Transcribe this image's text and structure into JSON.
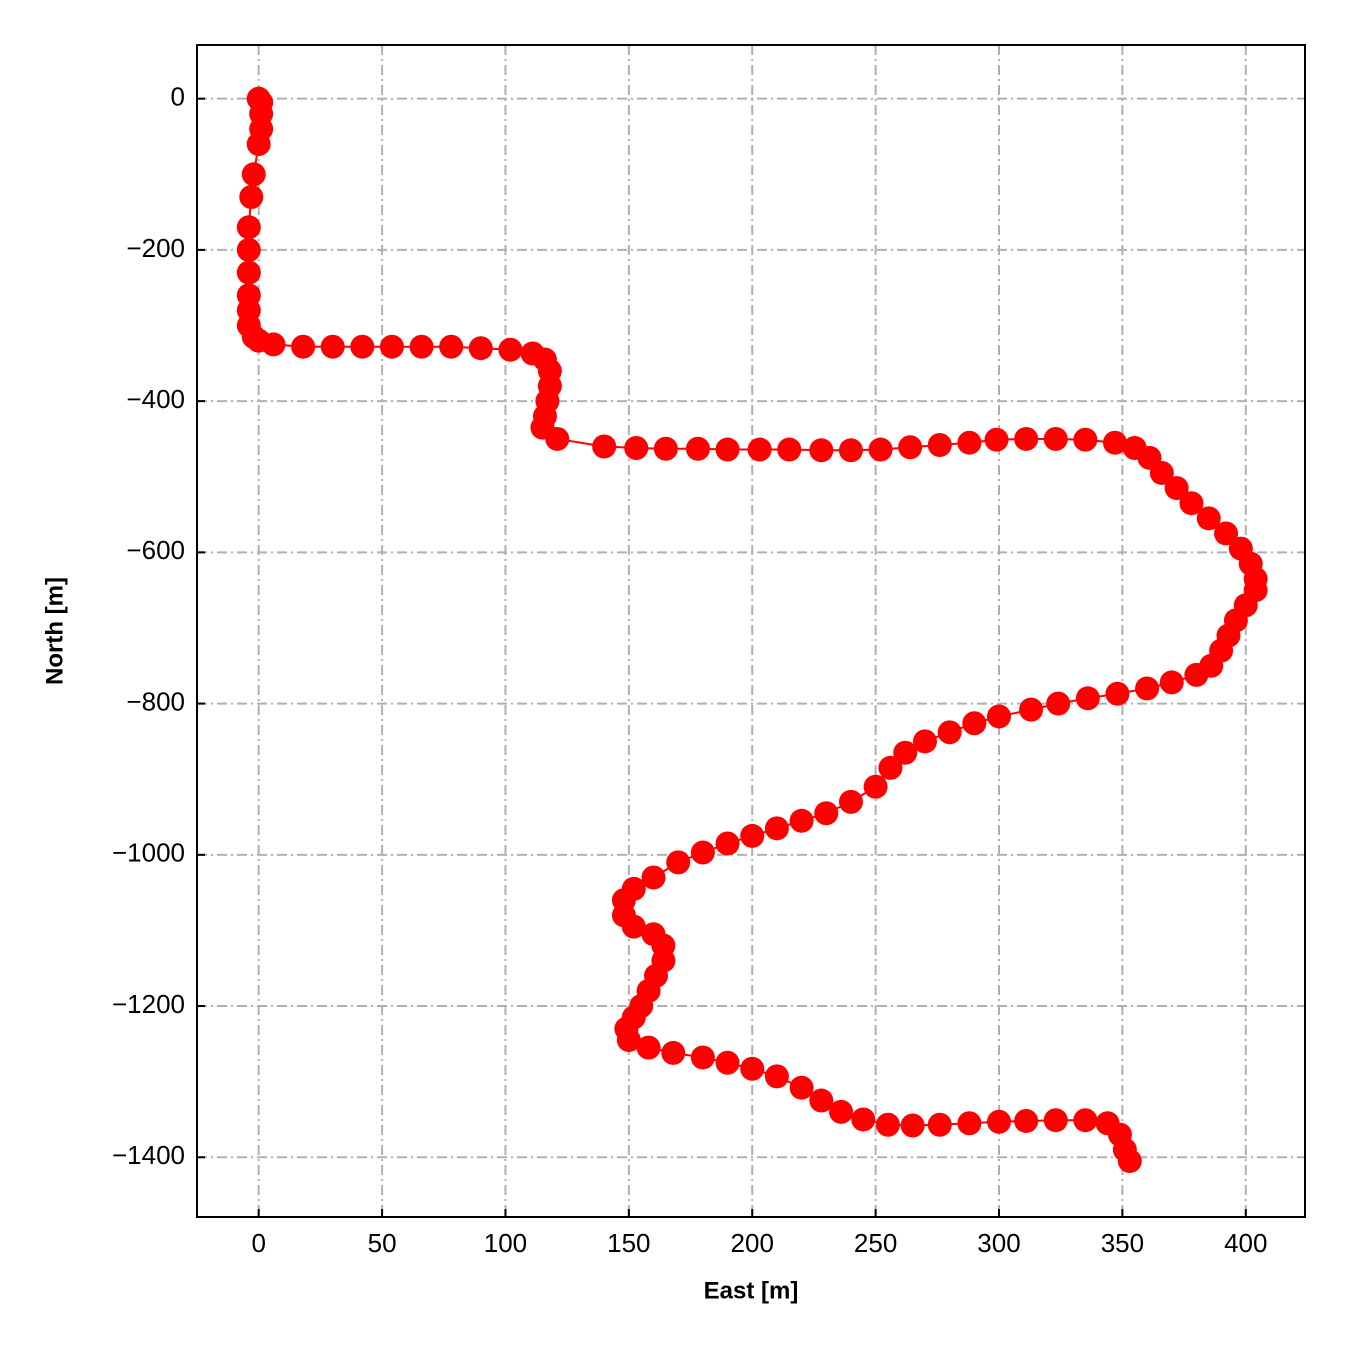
{
  "chart_data": {
    "type": "line",
    "xlabel": "East [m]",
    "ylabel": "North [m]",
    "color": "#ff0000",
    "grid": true,
    "markers": true,
    "xlim": [
      -25,
      424
    ],
    "ylim": [
      -1479,
      71
    ],
    "xticks": [
      0,
      50,
      100,
      150,
      200,
      250,
      300,
      350,
      400
    ],
    "yticks": [
      {
        "value": 0,
        "label": "0"
      },
      {
        "value": -200,
        "label": "−200"
      },
      {
        "value": -400,
        "label": "−400"
      },
      {
        "value": -600,
        "label": "−600"
      },
      {
        "value": -800,
        "label": "−800"
      },
      {
        "value": -1000,
        "label": "−1000"
      },
      {
        "value": -1200,
        "label": "−1200"
      },
      {
        "value": -1400,
        "label": "−1400"
      }
    ],
    "x": [
      0,
      1,
      1,
      1,
      0,
      -2,
      -3,
      -4,
      -4,
      -4,
      -4,
      -4,
      -4,
      -2,
      0,
      6,
      18,
      30,
      42,
      54,
      66,
      78,
      90,
      102,
      111,
      116,
      118,
      118,
      117,
      116,
      115,
      121,
      140,
      153,
      165,
      178,
      190,
      203,
      215,
      228,
      240,
      252,
      264,
      276,
      288,
      299,
      311,
      323,
      335,
      347,
      355,
      361,
      366,
      372,
      378,
      385,
      392,
      398,
      402,
      404,
      404,
      400,
      396,
      393,
      390,
      386,
      380,
      370,
      360,
      348,
      336,
      324,
      313,
      300,
      290,
      280,
      270,
      262,
      256,
      250,
      240,
      230,
      220,
      210,
      200,
      190,
      180,
      170,
      160,
      152,
      148,
      148,
      152,
      160,
      164,
      164,
      161,
      158,
      155,
      152,
      149,
      150,
      158,
      168,
      180,
      190,
      200,
      210,
      220,
      228,
      236,
      245,
      255,
      265,
      276,
      288,
      300,
      311,
      323,
      335,
      344,
      349,
      351,
      353
    ],
    "values": [
      0,
      -5,
      -20,
      -40,
      -60,
      -100,
      -130,
      -170,
      -200,
      -230,
      -260,
      -280,
      -300,
      -315,
      -320,
      -325,
      -328,
      -328,
      -328,
      -328,
      -328,
      -328,
      -330,
      -332,
      -337,
      -345,
      -360,
      -380,
      -400,
      -420,
      -435,
      -450,
      -460,
      -462,
      -463,
      -463,
      -464,
      -464,
      -464,
      -465,
      -465,
      -464,
      -461,
      -458,
      -455,
      -451,
      -450,
      -450,
      -451,
      -455,
      -462,
      -475,
      -495,
      -515,
      -535,
      -555,
      -575,
      -595,
      -615,
      -635,
      -650,
      -670,
      -690,
      -710,
      -730,
      -750,
      -762,
      -772,
      -780,
      -787,
      -793,
      -800,
      -808,
      -817,
      -826,
      -838,
      -850,
      -865,
      -885,
      -910,
      -930,
      -945,
      -955,
      -965,
      -975,
      -985,
      -997,
      -1010,
      -1030,
      -1045,
      -1060,
      -1080,
      -1095,
      -1105,
      -1120,
      -1140,
      -1160,
      -1180,
      -1200,
      -1215,
      -1230,
      -1245,
      -1255,
      -1262,
      -1268,
      -1275,
      -1283,
      -1293,
      -1308,
      -1325,
      -1340,
      -1350,
      -1357,
      -1358,
      -1357,
      -1355,
      -1353,
      -1352,
      -1351,
      -1351,
      -1355,
      -1370,
      -1390,
      -1405
    ]
  }
}
